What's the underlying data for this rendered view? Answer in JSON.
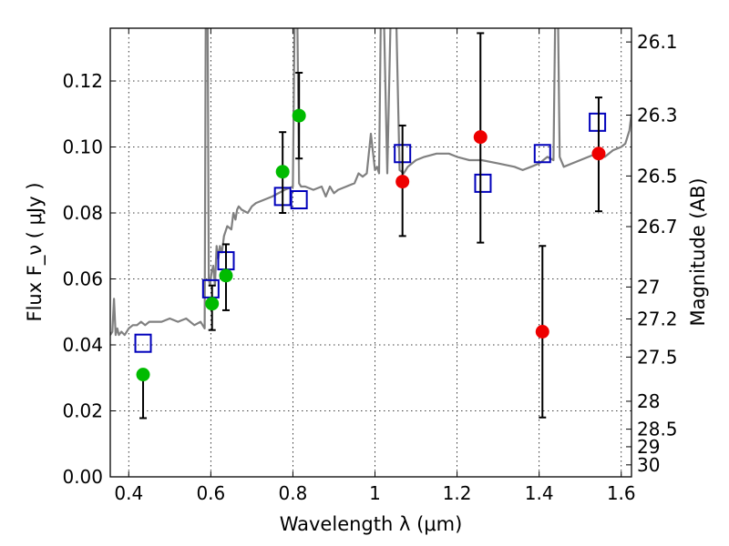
{
  "chart_data": {
    "type": "scatter",
    "xlabel": "Wavelength  λ (μm)",
    "ylabel": "Flux  F_ν  ( μJy )",
    "ylabel_right": "Magnitude (AB)",
    "xlim": [
      0.355,
      1.625
    ],
    "ylim": [
      0.0,
      0.136
    ],
    "grid": true,
    "x_ticks": [
      "0.4",
      "0.6",
      "0.8",
      "1",
      "1.2",
      "1.4",
      "1.6"
    ],
    "x_tick_values": [
      0.4,
      0.6,
      0.8,
      1.0,
      1.2,
      1.4,
      1.6
    ],
    "y_ticks": [
      "0.00",
      "0.02",
      "0.04",
      "0.06",
      "0.08",
      "0.10",
      "0.12"
    ],
    "y_tick_values": [
      0.0,
      0.02,
      0.04,
      0.06,
      0.08,
      0.1,
      0.12
    ],
    "mag_ticks": [
      "26.1",
      "26.3",
      "26.5",
      "26.7",
      "27",
      "27.2",
      "27.5",
      "28",
      "28.5",
      "29",
      "30"
    ],
    "mag_tick_values": [
      26.1,
      26.3,
      26.5,
      26.7,
      27.0,
      27.2,
      27.5,
      28.0,
      28.5,
      29.0,
      30.0
    ],
    "series": [
      {
        "kind": "line",
        "color": "#808080",
        "x": [
          0.355,
          0.36,
          0.364,
          0.368,
          0.372,
          0.376,
          0.382,
          0.39,
          0.4,
          0.41,
          0.42,
          0.43,
          0.44,
          0.45,
          0.46,
          0.48,
          0.5,
          0.52,
          0.54,
          0.56,
          0.575,
          0.585,
          0.588,
          0.592,
          0.595,
          0.598,
          0.602,
          0.606,
          0.61,
          0.614,
          0.618,
          0.622,
          0.627,
          0.632,
          0.64,
          0.65,
          0.655,
          0.66,
          0.664,
          0.668,
          0.675,
          0.69,
          0.7,
          0.71,
          0.73,
          0.75,
          0.78,
          0.8,
          0.805,
          0.81,
          0.815,
          0.82,
          0.83,
          0.85,
          0.87,
          0.88,
          0.89,
          0.9,
          0.91,
          0.93,
          0.95,
          0.96,
          0.97,
          0.98,
          0.99,
          1.0,
          1.005,
          1.01,
          1.015,
          1.02,
          1.03,
          1.04,
          1.05,
          1.06,
          1.07,
          1.08,
          1.09,
          1.1,
          1.12,
          1.15,
          1.18,
          1.2,
          1.23,
          1.26,
          1.3,
          1.34,
          1.36,
          1.38,
          1.4,
          1.42,
          1.435,
          1.44,
          1.445,
          1.45,
          1.46,
          1.48,
          1.5,
          1.52,
          1.54,
          1.56,
          1.58,
          1.6,
          1.61,
          1.62,
          1.625
        ],
        "y": [
          0.043,
          0.044,
          0.054,
          0.043,
          0.045,
          0.043,
          0.044,
          0.043,
          0.045,
          0.046,
          0.046,
          0.047,
          0.046,
          0.047,
          0.047,
          0.047,
          0.048,
          0.047,
          0.048,
          0.046,
          0.047,
          0.045,
          0.15,
          0.15,
          0.06,
          0.058,
          0.062,
          0.064,
          0.058,
          0.07,
          0.066,
          0.07,
          0.068,
          0.073,
          0.076,
          0.075,
          0.08,
          0.078,
          0.081,
          0.082,
          0.081,
          0.08,
          0.082,
          0.083,
          0.084,
          0.085,
          0.087,
          0.088,
          0.15,
          0.15,
          0.089,
          0.088,
          0.088,
          0.087,
          0.088,
          0.085,
          0.088,
          0.086,
          0.087,
          0.088,
          0.089,
          0.092,
          0.091,
          0.092,
          0.104,
          0.093,
          0.094,
          0.092,
          0.15,
          0.15,
          0.092,
          0.15,
          0.15,
          0.093,
          0.092,
          0.094,
          0.095,
          0.096,
          0.097,
          0.098,
          0.098,
          0.097,
          0.096,
          0.096,
          0.095,
          0.094,
          0.093,
          0.094,
          0.095,
          0.097,
          0.096,
          0.15,
          0.15,
          0.097,
          0.094,
          0.095,
          0.096,
          0.097,
          0.098,
          0.097,
          0.099,
          0.1,
          0.101,
          0.105,
          0.11
        ]
      },
      {
        "kind": "marker-open-square",
        "color": "#0000bb",
        "points": [
          [
            0.435,
            0.0405
          ],
          [
            0.6,
            0.057
          ],
          [
            0.637,
            0.0655
          ],
          [
            0.775,
            0.085
          ],
          [
            0.815,
            0.084
          ],
          [
            1.067,
            0.098
          ],
          [
            1.263,
            0.089
          ],
          [
            1.408,
            0.098
          ],
          [
            1.542,
            0.1075
          ]
        ]
      },
      {
        "kind": "marker-circle",
        "color": "#00bb00",
        "points": [
          {
            "x": 0.435,
            "y": 0.031,
            "err_lo": 0.0178,
            "err_hi": null
          },
          {
            "x": 0.603,
            "y": 0.0525,
            "err_lo": 0.0445,
            "err_hi": 0.058
          },
          {
            "x": 0.637,
            "y": 0.061,
            "err_lo": 0.0505,
            "err_hi": 0.0705
          },
          {
            "x": 0.775,
            "y": 0.0925,
            "err_lo": 0.08,
            "err_hi": 0.1045
          },
          {
            "x": 0.815,
            "y": 0.1095,
            "err_lo": 0.0965,
            "err_hi": 0.1225
          }
        ]
      },
      {
        "kind": "marker-circle",
        "color": "#ee0000",
        "points": [
          {
            "x": 1.067,
            "y": 0.0895,
            "err_lo": 0.073,
            "err_hi": 0.1065
          },
          {
            "x": 1.257,
            "y": 0.103,
            "err_lo": 0.071,
            "err_hi": 0.1345
          },
          {
            "x": 1.408,
            "y": 0.044,
            "err_lo": 0.018,
            "err_hi": 0.07
          },
          {
            "x": 1.545,
            "y": 0.098,
            "err_lo": 0.0805,
            "err_hi": 0.115
          }
        ]
      }
    ]
  }
}
